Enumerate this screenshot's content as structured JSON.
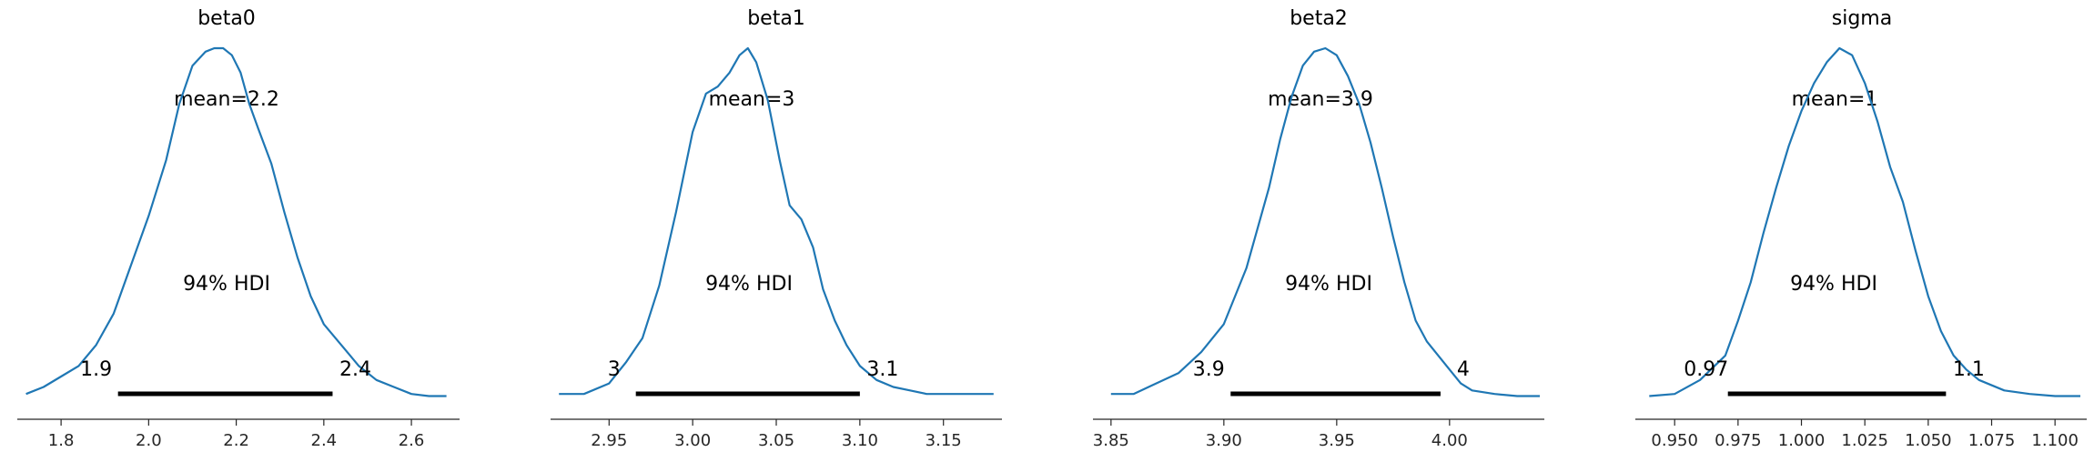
{
  "chart_data": [
    {
      "type": "area",
      "title": "beta0",
      "xlabel": "",
      "ylabel": "",
      "xlim": [
        1.7,
        2.71
      ],
      "ticks": [
        1.8,
        2.0,
        2.2,
        2.4,
        2.6
      ],
      "tick_labels": [
        "1.8",
        "2.0",
        "2.2",
        "2.4",
        "2.6"
      ],
      "mean_label": "mean=2.2",
      "hdi_text": "94% HDI",
      "hdi": [
        1.93,
        2.42
      ],
      "hdi_low_label": "1.9",
      "hdi_high_label": "2.4",
      "line_color": "#1f77b4",
      "kde": {
        "x": [
          1.72,
          1.76,
          1.8,
          1.84,
          1.88,
          1.92,
          1.96,
          2.0,
          2.04,
          2.07,
          2.1,
          2.13,
          2.15,
          2.17,
          2.19,
          2.21,
          2.23,
          2.25,
          2.28,
          2.31,
          2.34,
          2.37,
          2.4,
          2.44,
          2.48,
          2.52,
          2.56,
          2.6,
          2.64,
          2.68
        ],
        "y": [
          0.01,
          0.03,
          0.06,
          0.09,
          0.15,
          0.24,
          0.38,
          0.52,
          0.68,
          0.84,
          0.95,
          0.99,
          1.0,
          1.0,
          0.98,
          0.93,
          0.84,
          0.77,
          0.67,
          0.53,
          0.4,
          0.29,
          0.21,
          0.15,
          0.09,
          0.05,
          0.03,
          0.01,
          0.004,
          0.004
        ]
      }
    },
    {
      "type": "area",
      "title": "beta1",
      "xlabel": "",
      "ylabel": "",
      "xlim": [
        2.915,
        3.185
      ],
      "ticks": [
        2.95,
        3.0,
        3.05,
        3.1,
        3.15
      ],
      "tick_labels": [
        "2.95",
        "3.00",
        "3.05",
        "3.10",
        "3.15"
      ],
      "mean_label": "mean=3",
      "hdi_text": "94% HDI",
      "hdi": [
        2.966,
        3.1
      ],
      "hdi_low_label": "3",
      "hdi_high_label": "3.1",
      "line_color": "#1f77b4",
      "kde": {
        "x": [
          2.92,
          2.935,
          2.95,
          2.96,
          2.97,
          2.98,
          2.99,
          3.0,
          3.008,
          3.015,
          3.022,
          3.028,
          3.033,
          3.038,
          3.045,
          3.052,
          3.058,
          3.065,
          3.072,
          3.078,
          3.085,
          3.092,
          3.1,
          3.11,
          3.12,
          3.13,
          3.14,
          3.15,
          3.16,
          3.17,
          3.18
        ],
        "y": [
          0.01,
          0.01,
          0.04,
          0.1,
          0.17,
          0.32,
          0.53,
          0.76,
          0.87,
          0.89,
          0.93,
          0.98,
          1.0,
          0.96,
          0.85,
          0.68,
          0.55,
          0.51,
          0.43,
          0.31,
          0.22,
          0.15,
          0.09,
          0.05,
          0.03,
          0.02,
          0.01,
          0.01,
          0.01,
          0.01,
          0.01
        ]
      }
    },
    {
      "type": "area",
      "title": "beta2",
      "xlabel": "",
      "ylabel": "",
      "xlim": [
        3.842,
        4.042
      ],
      "ticks": [
        3.85,
        3.9,
        3.95,
        4.0
      ],
      "tick_labels": [
        "3.85",
        "3.90",
        "3.95",
        "4.00"
      ],
      "mean_label": "mean=3.9",
      "hdi_text": "94% HDI",
      "hdi": [
        3.903,
        3.996
      ],
      "hdi_low_label": "3.9",
      "hdi_high_label": "4",
      "line_color": "#1f77b4",
      "kde": {
        "x": [
          3.85,
          3.86,
          3.87,
          3.88,
          3.89,
          3.9,
          3.91,
          3.92,
          3.925,
          3.93,
          3.935,
          3.94,
          3.945,
          3.95,
          3.955,
          3.96,
          3.965,
          3.97,
          3.975,
          3.98,
          3.985,
          3.99,
          3.995,
          4.0,
          4.005,
          4.01,
          4.02,
          4.03,
          4.04
        ],
        "y": [
          0.01,
          0.01,
          0.04,
          0.07,
          0.13,
          0.21,
          0.37,
          0.6,
          0.74,
          0.86,
          0.95,
          0.99,
          1.0,
          0.98,
          0.92,
          0.84,
          0.73,
          0.6,
          0.46,
          0.33,
          0.22,
          0.16,
          0.12,
          0.08,
          0.04,
          0.02,
          0.01,
          0.004,
          0.004
        ]
      }
    },
    {
      "type": "area",
      "title": "sigma",
      "xlabel": "",
      "ylabel": "",
      "xlim": [
        0.9345,
        1.1125
      ],
      "ticks": [
        0.95,
        0.975,
        1.0,
        1.025,
        1.05,
        1.075,
        1.1
      ],
      "tick_labels": [
        "0.950",
        "0.975",
        "1.000",
        "1.025",
        "1.050",
        "1.075",
        "1.100"
      ],
      "mean_label": "mean=1",
      "hdi_text": "94% HDI",
      "hdi": [
        0.971,
        1.057
      ],
      "hdi_low_label": "0.97",
      "hdi_high_label": "1.1",
      "line_color": "#1f77b4",
      "kde": {
        "x": [
          0.94,
          0.95,
          0.96,
          0.97,
          0.975,
          0.98,
          0.985,
          0.99,
          0.995,
          1.0,
          1.005,
          1.01,
          1.015,
          1.02,
          1.025,
          1.03,
          1.035,
          1.04,
          1.045,
          1.05,
          1.055,
          1.06,
          1.065,
          1.07,
          1.08,
          1.09,
          1.1,
          1.11
        ],
        "y": [
          0.004,
          0.01,
          0.05,
          0.12,
          0.22,
          0.33,
          0.47,
          0.6,
          0.72,
          0.82,
          0.9,
          0.96,
          1.0,
          0.98,
          0.9,
          0.79,
          0.66,
          0.56,
          0.42,
          0.29,
          0.19,
          0.12,
          0.08,
          0.05,
          0.02,
          0.01,
          0.004,
          0.004
        ]
      }
    }
  ]
}
